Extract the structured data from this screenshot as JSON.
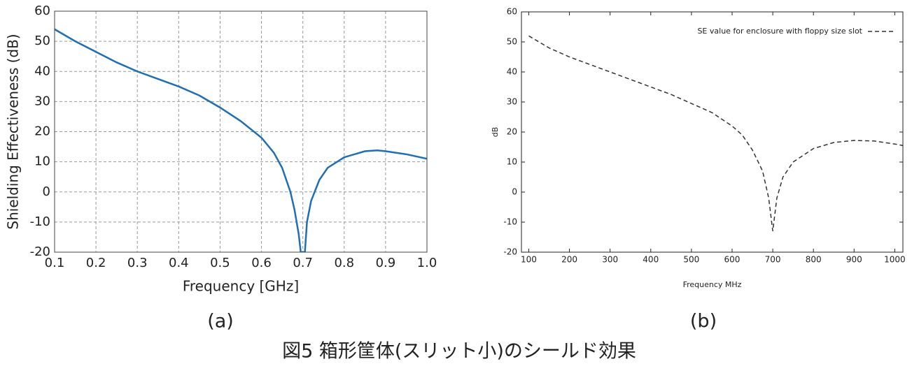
{
  "chart_data": [
    {
      "type": "line",
      "panel_label": "(a)",
      "x_label": "Frequency [GHz]",
      "y_label": "Shielding Effectiveness (dB)",
      "x": [
        0.1,
        0.15,
        0.2,
        0.25,
        0.3,
        0.35,
        0.4,
        0.45,
        0.5,
        0.55,
        0.6,
        0.63,
        0.65,
        0.67,
        0.68,
        0.69,
        0.695,
        0.705,
        0.71,
        0.72,
        0.74,
        0.76,
        0.8,
        0.85,
        0.88,
        0.9,
        0.95,
        1.0
      ],
      "series": [
        {
          "color": "#1f6fb4",
          "line_style": "solid",
          "values": [
            54,
            50,
            46.5,
            43,
            40,
            37.5,
            35,
            32,
            28,
            23.5,
            18,
            13,
            8,
            0,
            -6,
            -14,
            -20,
            -20,
            -10,
            -3,
            4,
            8,
            11.5,
            13.5,
            13.8,
            13.5,
            12.5,
            11
          ]
        }
      ],
      "xlim": [
        0.1,
        1.0
      ],
      "ylim": [
        -20,
        60
      ],
      "xticks": [
        0.1,
        0.2,
        0.3,
        0.4,
        0.5,
        0.6,
        0.7,
        0.8,
        0.9,
        {
          "value": 1.0,
          "label": "1.0"
        }
      ],
      "yticks": [
        -20,
        -10,
        0,
        10,
        20,
        30,
        40,
        50,
        60
      ],
      "grid": true
    },
    {
      "type": "line",
      "panel_label": "(b)",
      "x_label": "Frequency MHz",
      "y_label": "dB",
      "x": [
        100,
        150,
        200,
        250,
        300,
        350,
        400,
        450,
        500,
        550,
        600,
        625,
        650,
        675,
        690,
        700,
        710,
        725,
        750,
        800,
        850,
        900,
        950,
        1000,
        1020
      ],
      "series": [
        {
          "name": "SE value for enclosure with floppy size slot",
          "color": "#333333",
          "line_style": "dashed",
          "values": [
            52,
            48,
            45,
            42.5,
            40,
            37.5,
            35,
            32.5,
            29.5,
            26.5,
            22,
            19,
            14,
            7,
            -2,
            -13,
            -2,
            5,
            10,
            14.5,
            16.5,
            17.2,
            17,
            16,
            15.5
          ]
        }
      ],
      "xlim": [
        82,
        1020
      ],
      "ylim": [
        -20,
        60
      ],
      "xticks": [
        100,
        200,
        300,
        400,
        500,
        600,
        700,
        800,
        900,
        1000
      ],
      "yticks": [
        -20,
        -10,
        0,
        10,
        20,
        30,
        40,
        50,
        60
      ],
      "grid": false,
      "legend": "top-right"
    }
  ],
  "caption": "図5 箱形筐体(スリット小)のシールド効果"
}
